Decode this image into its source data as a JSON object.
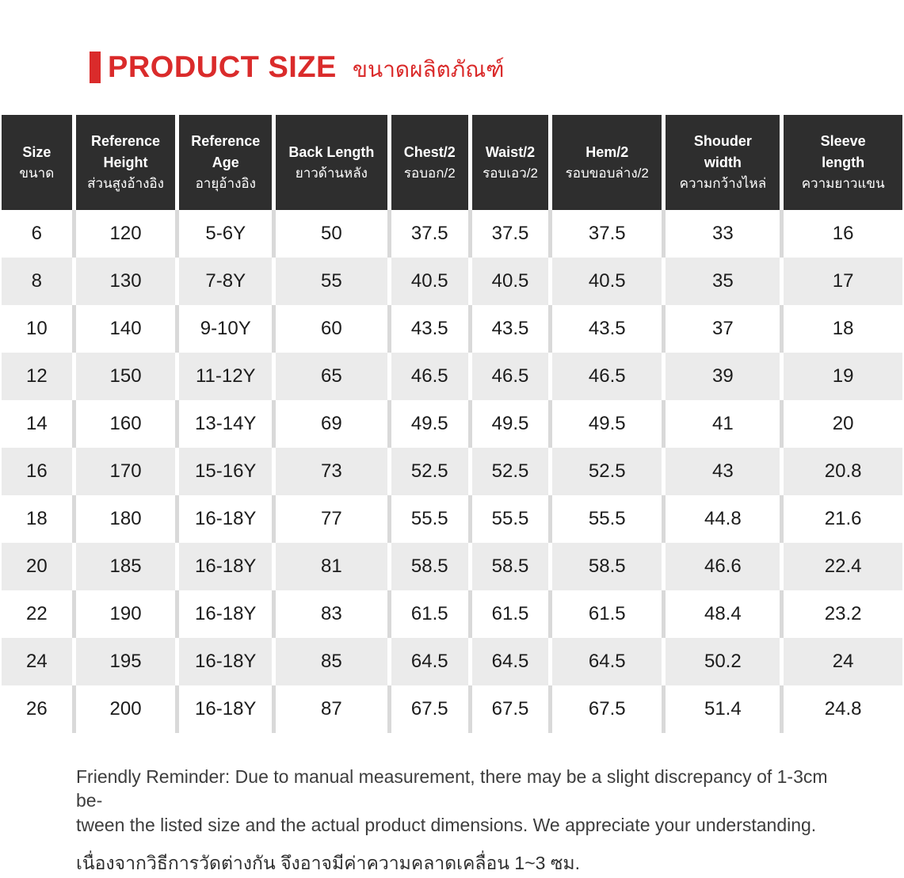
{
  "title": {
    "en": "PRODUCT SIZE",
    "th": "ขนาดผลิตภัณฑ์"
  },
  "colors": {
    "accent_red": "#da2b2b",
    "header_bg": "#2e2e2e",
    "header_text": "#ffffff",
    "row_alt_bg": "#ebebeb",
    "separator_on_white": "#d9d9d9",
    "separator_on_gray": "#ffffff"
  },
  "table": {
    "columns": [
      {
        "key": "size",
        "en": "Size",
        "th": "ขนาด"
      },
      {
        "key": "reference-height",
        "en": "Reference\nHeight",
        "th": "ส่วนสูงอ้างอิง"
      },
      {
        "key": "reference-age",
        "en": "Reference\nAge",
        "th": "อายุอ้างอิง"
      },
      {
        "key": "back-length",
        "en": "Back Length",
        "th": "ยาวด้านหลัง"
      },
      {
        "key": "chest-half",
        "en": "Chest/2",
        "th": "รอบอก/2"
      },
      {
        "key": "waist-half",
        "en": "Waist/2",
        "th": "รอบเอว/2"
      },
      {
        "key": "hem-half",
        "en": "Hem/2",
        "th": "รอบขอบล่าง/2"
      },
      {
        "key": "shoulder-width",
        "en": "Shouder\nwidth",
        "th": "ความกว้างไหล่"
      },
      {
        "key": "sleeve-length",
        "en": "Sleeve\nlength",
        "th": "ความยาวแขน"
      }
    ],
    "column_widths_pct": [
      7.8,
      11.5,
      10.7,
      12.8,
      9.0,
      8.9,
      12.6,
      13.1,
      13.6
    ],
    "rows": [
      [
        "6",
        "120",
        "5-6Y",
        "50",
        "37.5",
        "37.5",
        "37.5",
        "33",
        "16"
      ],
      [
        "8",
        "130",
        "7-8Y",
        "55",
        "40.5",
        "40.5",
        "40.5",
        "35",
        "17"
      ],
      [
        "10",
        "140",
        "9-10Y",
        "60",
        "43.5",
        "43.5",
        "43.5",
        "37",
        "18"
      ],
      [
        "12",
        "150",
        "11-12Y",
        "65",
        "46.5",
        "46.5",
        "46.5",
        "39",
        "19"
      ],
      [
        "14",
        "160",
        "13-14Y",
        "69",
        "49.5",
        "49.5",
        "49.5",
        "41",
        "20"
      ],
      [
        "16",
        "170",
        "15-16Y",
        "73",
        "52.5",
        "52.5",
        "52.5",
        "43",
        "20.8"
      ],
      [
        "18",
        "180",
        "16-18Y",
        "77",
        "55.5",
        "55.5",
        "55.5",
        "44.8",
        "21.6"
      ],
      [
        "20",
        "185",
        "16-18Y",
        "81",
        "58.5",
        "58.5",
        "58.5",
        "46.6",
        "22.4"
      ],
      [
        "22",
        "190",
        "16-18Y",
        "83",
        "61.5",
        "61.5",
        "61.5",
        "48.4",
        "23.2"
      ],
      [
        "24",
        "195",
        "16-18Y",
        "85",
        "64.5",
        "64.5",
        "64.5",
        "50.2",
        "24"
      ],
      [
        "26",
        "200",
        "16-18Y",
        "87",
        "67.5",
        "67.5",
        "67.5",
        "51.4",
        "24.8"
      ]
    ]
  },
  "footer": {
    "en_lines": [
      "Friendly Reminder: Due to manual measurement, there may be a slight discrepancy of 1-3cm be-",
      "tween the listed size and the actual product dimensions. We appreciate your understanding."
    ],
    "th": "เนื่องจากวิธีการวัดต่างกัน จึงอาจมีค่าความคลาดเคลื่อน 1~3 ซม."
  }
}
